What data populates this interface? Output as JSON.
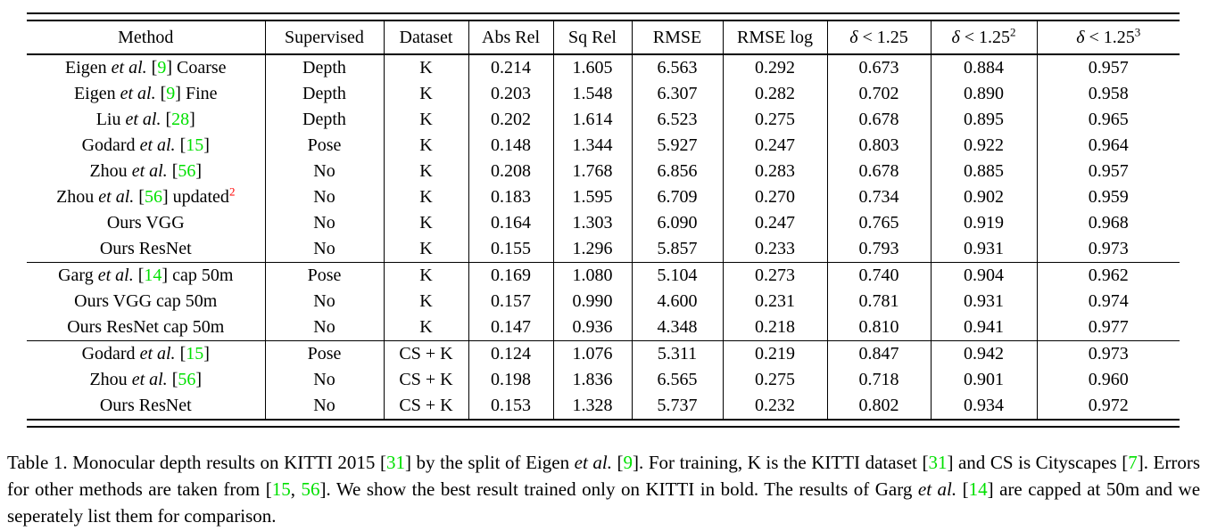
{
  "colors": {
    "green": "#00e000",
    "red": "#ff0000"
  },
  "table": {
    "headers": [
      {
        "parts": [
          {
            "t": "Method"
          }
        ]
      },
      {
        "parts": [
          {
            "t": "Supervised"
          }
        ]
      },
      {
        "parts": [
          {
            "t": "Dataset"
          }
        ]
      },
      {
        "parts": [
          {
            "t": "Abs Rel"
          }
        ]
      },
      {
        "parts": [
          {
            "t": "Sq Rel"
          }
        ]
      },
      {
        "parts": [
          {
            "t": "RMSE"
          }
        ]
      },
      {
        "parts": [
          {
            "t": "RMSE log"
          }
        ]
      },
      {
        "parts": [
          {
            "t": "δ",
            "i": true
          },
          {
            "t": " < 1.25"
          }
        ]
      },
      {
        "parts": [
          {
            "t": "δ",
            "i": true
          },
          {
            "t": " < 1.25"
          },
          {
            "t": "2",
            "sup": true
          }
        ]
      },
      {
        "parts": [
          {
            "t": "δ",
            "i": true
          },
          {
            "t": " < 1.25"
          },
          {
            "t": "3",
            "sup": true
          }
        ]
      }
    ],
    "sections": [
      {
        "rows": [
          {
            "method": [
              {
                "t": "Eigen "
              },
              {
                "t": "et al.",
                "i": true
              },
              {
                "t": " ["
              },
              {
                "t": "9",
                "c": "green"
              },
              {
                "t": "] Coarse"
              }
            ],
            "supervised": "Depth",
            "dataset": "K",
            "values": [
              "0.214",
              "1.605",
              "6.563",
              "0.292",
              "0.673",
              "0.884",
              "0.957"
            ],
            "bold": [
              0,
              0,
              0,
              0,
              0,
              0,
              0
            ]
          },
          {
            "method": [
              {
                "t": "Eigen "
              },
              {
                "t": "et al.",
                "i": true
              },
              {
                "t": " ["
              },
              {
                "t": "9",
                "c": "green"
              },
              {
                "t": "] Fine"
              }
            ],
            "supervised": "Depth",
            "dataset": "K",
            "values": [
              "0.203",
              "1.548",
              "6.307",
              "0.282",
              "0.702",
              "0.890",
              "0.958"
            ],
            "bold": [
              0,
              0,
              0,
              0,
              0,
              0,
              0
            ]
          },
          {
            "method": [
              {
                "t": "Liu "
              },
              {
                "t": "et al.",
                "i": true
              },
              {
                "t": " ["
              },
              {
                "t": "28",
                "c": "green"
              },
              {
                "t": "]"
              }
            ],
            "supervised": "Depth",
            "dataset": "K",
            "values": [
              "0.202",
              "1.614",
              "6.523",
              "0.275",
              "0.678",
              "0.895",
              "0.965"
            ],
            "bold": [
              0,
              0,
              0,
              0,
              0,
              0,
              0
            ]
          },
          {
            "method": [
              {
                "t": "Godard "
              },
              {
                "t": "et al.",
                "i": true
              },
              {
                "t": " ["
              },
              {
                "t": "15",
                "c": "green"
              },
              {
                "t": "]"
              }
            ],
            "supervised": "Pose",
            "dataset": "K",
            "values": [
              "0.148",
              "1.344",
              "5.927",
              "0.247",
              "0.803",
              "0.922",
              "0.964"
            ],
            "bold": [
              1,
              0,
              0,
              0,
              1,
              0,
              0
            ]
          },
          {
            "method": [
              {
                "t": "Zhou "
              },
              {
                "t": "et al.",
                "i": true
              },
              {
                "t": " ["
              },
              {
                "t": "56",
                "c": "green"
              },
              {
                "t": "]"
              }
            ],
            "supervised": "No",
            "dataset": "K",
            "values": [
              "0.208",
              "1.768",
              "6.856",
              "0.283",
              "0.678",
              "0.885",
              "0.957"
            ],
            "bold": [
              0,
              0,
              0,
              0,
              0,
              0,
              0
            ]
          },
          {
            "method": [
              {
                "t": "Zhou "
              },
              {
                "t": "et al.",
                "i": true
              },
              {
                "t": " ["
              },
              {
                "t": "56",
                "c": "green"
              },
              {
                "t": "] updated"
              },
              {
                "t": "2",
                "sup": true,
                "c": "red"
              }
            ],
            "supervised": "No",
            "dataset": "K",
            "values": [
              "0.183",
              "1.595",
              "6.709",
              "0.270",
              "0.734",
              "0.902",
              "0.959"
            ],
            "bold": [
              0,
              0,
              0,
              0,
              0,
              0,
              0
            ]
          },
          {
            "method": [
              {
                "t": "Ours VGG"
              }
            ],
            "supervised": "No",
            "dataset": "K",
            "values": [
              "0.164",
              "1.303",
              "6.090",
              "0.247",
              "0.765",
              "0.919",
              "0.968"
            ],
            "bold": [
              0,
              0,
              0,
              0,
              0,
              0,
              0
            ]
          },
          {
            "method": [
              {
                "t": "Ours ResNet"
              }
            ],
            "supervised": "No",
            "dataset": "K",
            "values": [
              "0.155",
              "1.296",
              "5.857",
              "0.233",
              "0.793",
              "0.931",
              "0.973"
            ],
            "bold": [
              0,
              1,
              1,
              1,
              0,
              1,
              1
            ]
          }
        ]
      },
      {
        "rows": [
          {
            "method": [
              {
                "t": "Garg "
              },
              {
                "t": "et al.",
                "i": true
              },
              {
                "t": " ["
              },
              {
                "t": "14",
                "c": "green"
              },
              {
                "t": "] cap 50m"
              }
            ],
            "supervised": "Pose",
            "dataset": "K",
            "values": [
              "0.169",
              "1.080",
              "5.104",
              "0.273",
              "0.740",
              "0.904",
              "0.962"
            ],
            "bold": [
              0,
              0,
              0,
              0,
              0,
              0,
              0
            ]
          },
          {
            "method": [
              {
                "t": "Ours VGG cap 50m"
              }
            ],
            "supervised": "No",
            "dataset": "K",
            "values": [
              "0.157",
              "0.990",
              "4.600",
              "0.231",
              "0.781",
              "0.931",
              "0.974"
            ],
            "bold": [
              0,
              0,
              0,
              0,
              0,
              0,
              0
            ]
          },
          {
            "method": [
              {
                "t": "Ours ResNet cap 50m"
              }
            ],
            "supervised": "No",
            "dataset": "K",
            "values": [
              "0.147",
              "0.936",
              "4.348",
              "0.218",
              "0.810",
              "0.941",
              "0.977"
            ],
            "bold": [
              1,
              1,
              1,
              1,
              1,
              1,
              1
            ]
          }
        ]
      },
      {
        "rows": [
          {
            "method": [
              {
                "t": "Godard "
              },
              {
                "t": "et al.",
                "i": true
              },
              {
                "t": " ["
              },
              {
                "t": "15",
                "c": "green"
              },
              {
                "t": "]"
              }
            ],
            "supervised": "Pose",
            "dataset": "CS + K",
            "values": [
              "0.124",
              "1.076",
              "5.311",
              "0.219",
              "0.847",
              "0.942",
              "0.973"
            ],
            "bold": [
              1,
              1,
              1,
              1,
              1,
              1,
              1
            ]
          },
          {
            "method": [
              {
                "t": "Zhou "
              },
              {
                "t": "et al.",
                "i": true
              },
              {
                "t": " ["
              },
              {
                "t": "56",
                "c": "green"
              },
              {
                "t": "]"
              }
            ],
            "supervised": "No",
            "dataset": "CS + K",
            "values": [
              "0.198",
              "1.836",
              "6.565",
              "0.275",
              "0.718",
              "0.901",
              "0.960"
            ],
            "bold": [
              0,
              0,
              0,
              0,
              0,
              0,
              0
            ]
          },
          {
            "method": [
              {
                "t": "Ours ResNet"
              }
            ],
            "supervised": "No",
            "dataset": "CS + K",
            "values": [
              "0.153",
              "1.328",
              "5.737",
              "0.232",
              "0.802",
              "0.934",
              "0.972"
            ],
            "bold": [
              0,
              0,
              0,
              0,
              0,
              0,
              0
            ]
          }
        ]
      }
    ]
  },
  "caption": {
    "parts": [
      {
        "t": "Table 1. Monocular depth results on KITTI 2015 ["
      },
      {
        "t": "31",
        "c": "green"
      },
      {
        "t": "] by the split of Eigen "
      },
      {
        "t": "et al.",
        "i": true
      },
      {
        "t": " ["
      },
      {
        "t": "9",
        "c": "green"
      },
      {
        "t": "]. For training, K is the KITTI dataset ["
      },
      {
        "t": "31",
        "c": "green"
      },
      {
        "t": "] and CS is Cityscapes ["
      },
      {
        "t": "7",
        "c": "green"
      },
      {
        "t": "]. Errors for other methods are taken from ["
      },
      {
        "t": "15",
        "c": "green"
      },
      {
        "t": ", "
      },
      {
        "t": "56",
        "c": "green"
      },
      {
        "t": "]. We show the best result trained only on KITTI in bold. The results of Garg "
      },
      {
        "t": "et al.",
        "i": true
      },
      {
        "t": " ["
      },
      {
        "t": "14",
        "c": "green"
      },
      {
        "t": "] are capped at 50m and we seperately list them for comparison."
      }
    ]
  }
}
